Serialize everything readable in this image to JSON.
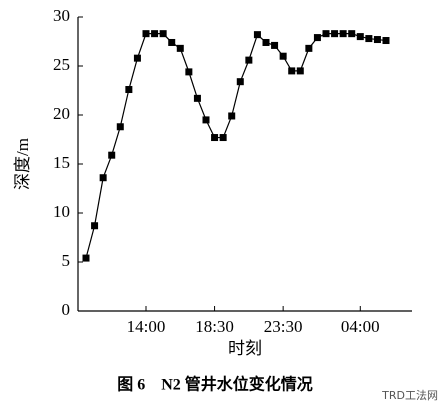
{
  "chart_data": {
    "type": "line",
    "x_label": "时刻",
    "y_label": "深度/m",
    "caption": "图 6　N2 管井水位变化情况",
    "watermark": "TRD工法网",
    "categories": [
      null,
      null,
      null,
      null,
      null,
      null,
      null,
      "14:00",
      null,
      null,
      null,
      null,
      null,
      null,
      null,
      "18:30",
      null,
      null,
      null,
      null,
      null,
      null,
      null,
      "23:30",
      null,
      null,
      null,
      null,
      null,
      null,
      null,
      null,
      "04:00",
      null,
      null,
      null
    ],
    "values": [
      5.4,
      8.7,
      13.6,
      15.9,
      18.8,
      22.6,
      25.8,
      28.3,
      28.3,
      28.3,
      27.4,
      26.8,
      24.4,
      21.7,
      19.5,
      17.7,
      17.7,
      19.9,
      23.4,
      25.6,
      28.2,
      27.4,
      27.1,
      26.0,
      24.5,
      24.5,
      26.8,
      27.9,
      28.3,
      28.3,
      28.3,
      28.3,
      28.0,
      27.8,
      27.7,
      27.6
    ],
    "color": "#000000",
    "ylim": [
      0,
      30
    ],
    "yticks": [
      0,
      5,
      10,
      15,
      20,
      25,
      30
    ]
  }
}
